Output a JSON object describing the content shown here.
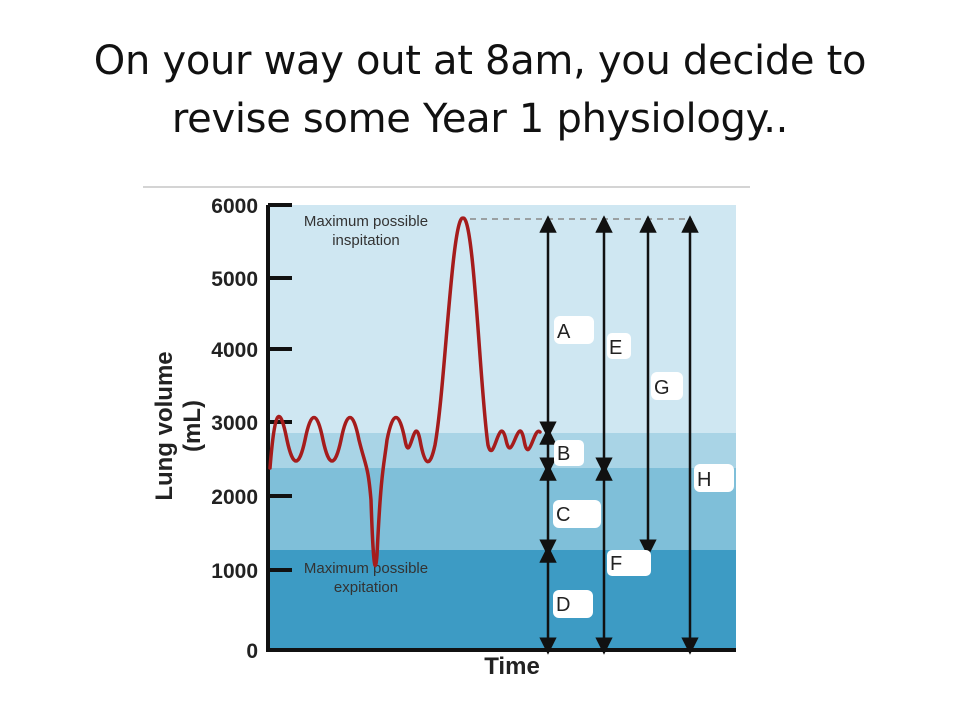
{
  "slide": {
    "title_line1": "On your way out at 8am, you decide to",
    "title_line2": "revise some Year 1 physiology.."
  },
  "diagram": {
    "y_axis": {
      "label_line1": "Lung volume",
      "label_line2": "(mL)",
      "ticks": [
        "6000",
        "5000",
        "4000",
        "3000",
        "2000",
        "1000",
        "0"
      ]
    },
    "x_axis": {
      "label": "Time"
    },
    "annotations": {
      "max_inspiration_line1": "Maximum possible",
      "max_inspiration_line2": "inspitation",
      "max_expiration_line1": "Maximum possible",
      "max_expiration_line2": "expitation"
    },
    "volume_labels": [
      "A",
      "B",
      "C",
      "D",
      "E",
      "F",
      "G",
      "H"
    ],
    "colors": {
      "band_top": "#cfe7f2",
      "band_tidal": "#a9d4e6",
      "band_erv": "#7fbfd9",
      "band_rv": "#3d9bc4",
      "trace": "#a51c1c"
    }
  }
}
